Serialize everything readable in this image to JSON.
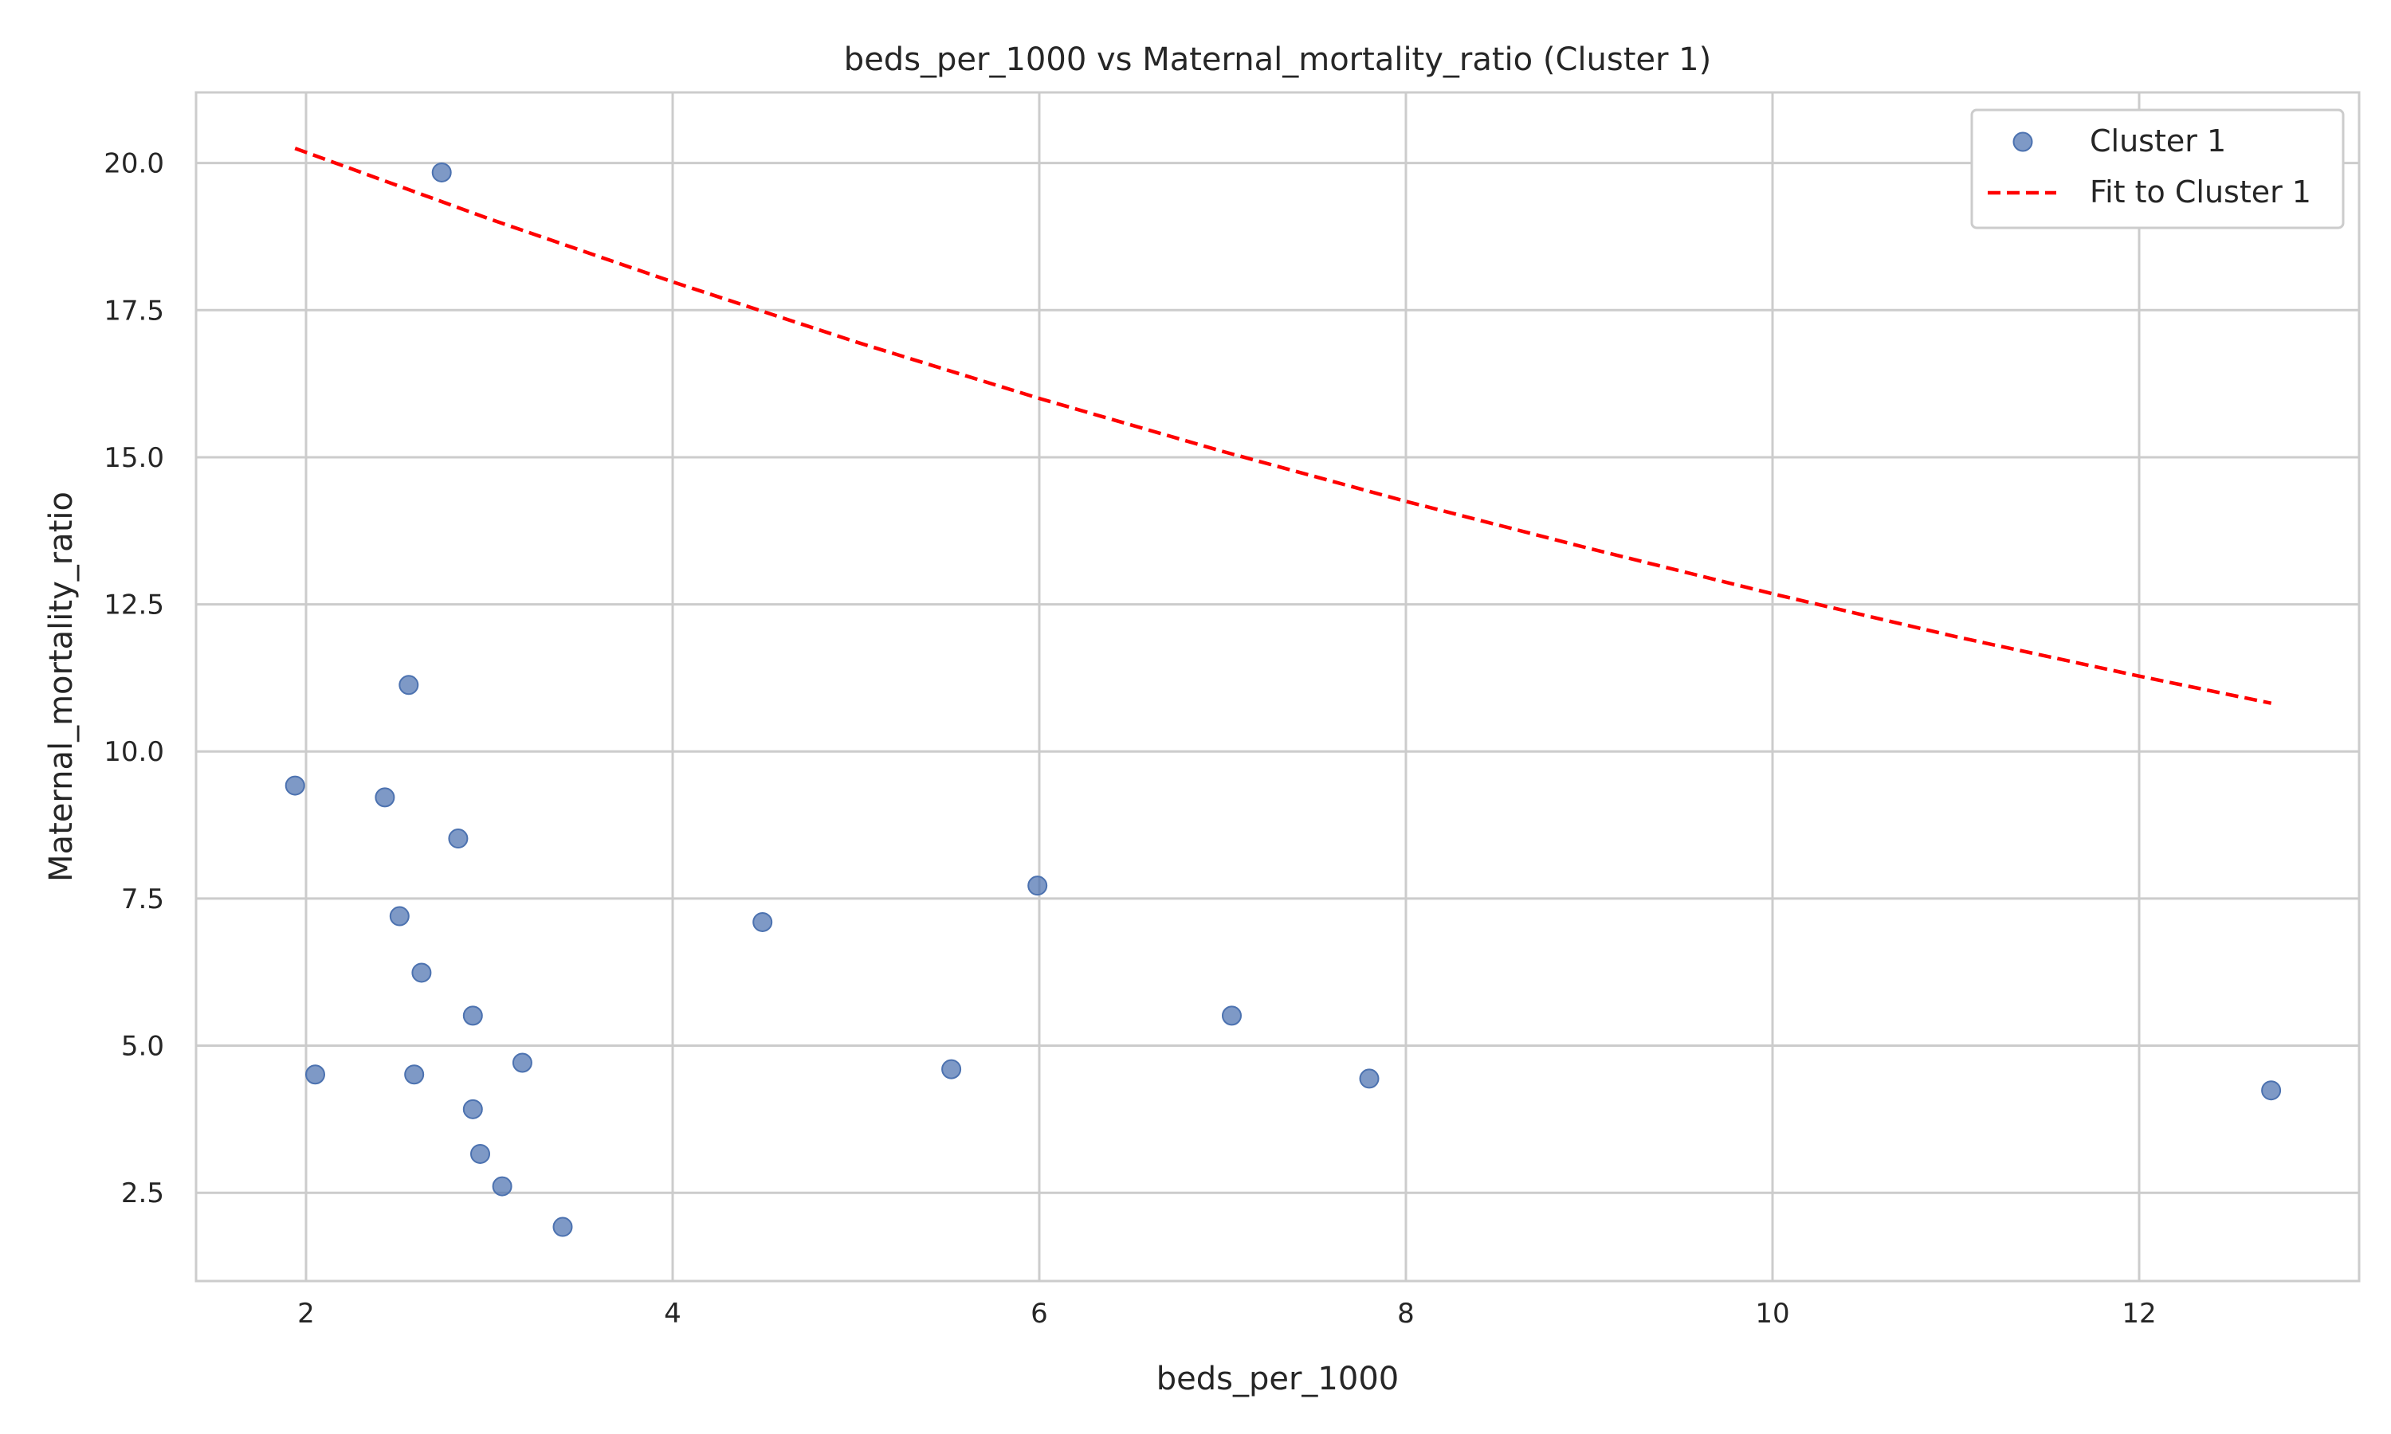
{
  "chart_data": {
    "type": "scatter",
    "title": "beds_per_1000 vs Maternal_mortality_ratio (Cluster 1)",
    "xlabel": "beds_per_1000",
    "ylabel": "Maternal_mortality_ratio",
    "xlim": [
      1.4,
      13.2
    ],
    "ylim": [
      1.0,
      21.2
    ],
    "xticks": [
      2,
      4,
      6,
      8,
      10,
      12
    ],
    "xtick_labels": [
      "2",
      "4",
      "6",
      "8",
      "10",
      "12"
    ],
    "yticks": [
      2.5,
      5.0,
      7.5,
      10.0,
      12.5,
      15.0,
      17.5,
      20.0
    ],
    "ytick_labels": [
      "2.5",
      "5.0",
      "7.5",
      "10.0",
      "12.5",
      "15.0",
      "17.5",
      "20.0"
    ],
    "grid": true,
    "legend_position": "top-right",
    "series": [
      {
        "name": "Cluster 1",
        "kind": "scatter",
        "color": "#4c72b0",
        "points": [
          [
            1.94,
            9.42
          ],
          [
            2.05,
            4.51
          ],
          [
            2.43,
            9.22
          ],
          [
            2.51,
            7.2
          ],
          [
            2.56,
            11.13
          ],
          [
            2.59,
            4.51
          ],
          [
            2.63,
            6.24
          ],
          [
            2.74,
            19.84
          ],
          [
            2.83,
            8.52
          ],
          [
            2.91,
            5.51
          ],
          [
            2.91,
            3.92
          ],
          [
            2.95,
            3.16
          ],
          [
            3.07,
            2.61
          ],
          [
            3.18,
            4.71
          ],
          [
            3.4,
            1.92
          ],
          [
            4.49,
            7.1
          ],
          [
            5.52,
            4.6
          ],
          [
            5.99,
            7.72
          ],
          [
            7.05,
            5.51
          ],
          [
            7.8,
            4.44
          ],
          [
            12.72,
            4.24
          ]
        ]
      },
      {
        "name": "Fit to Cluster 1",
        "kind": "line",
        "style": "dashed",
        "color": "#ff0000",
        "x": [
          1.94,
          3.0,
          4.0,
          5.0,
          6.0,
          7.0,
          8.0,
          9.0,
          10.0,
          11.0,
          12.0,
          12.72
        ],
        "y": [
          20.25,
          19.05,
          17.98,
          16.96,
          16.0,
          15.1,
          14.25,
          13.45,
          12.68,
          11.95,
          11.28,
          10.82
        ]
      }
    ]
  }
}
